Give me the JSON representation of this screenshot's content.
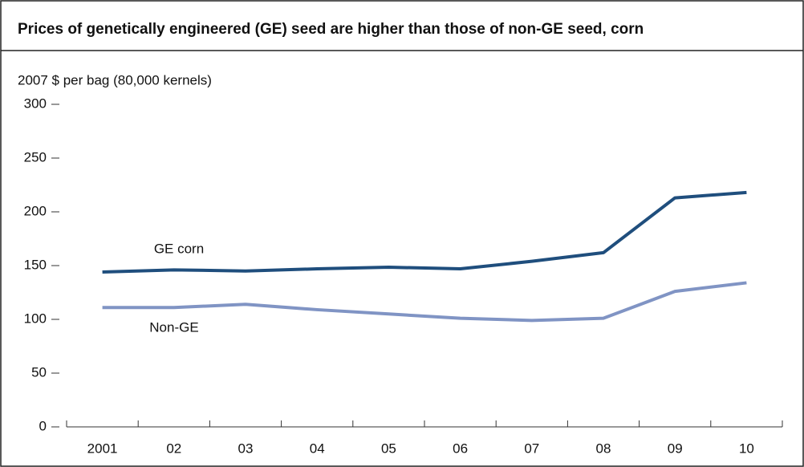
{
  "chart_data": {
    "type": "line",
    "title": "Prices of genetically engineered (GE) seed are higher than those of non-GE seed, corn",
    "y_label": "2007 $ per bag (80,000 kernels)",
    "categories": [
      "2001",
      "02",
      "03",
      "04",
      "05",
      "06",
      "07",
      "08",
      "09",
      "10"
    ],
    "series": [
      {
        "name": "GE corn",
        "color": "#1f4e7d",
        "values": [
          144,
          146,
          145,
          147,
          148.5,
          147,
          154,
          162,
          213,
          218
        ]
      },
      {
        "name": "Non-GE",
        "color": "#8094c4",
        "values": [
          111,
          111,
          114,
          109,
          105,
          101,
          99,
          101,
          126,
          134
        ]
      }
    ],
    "ylim": [
      0,
      300
    ],
    "yticks": [
      0,
      50,
      100,
      150,
      200,
      250,
      300
    ]
  }
}
